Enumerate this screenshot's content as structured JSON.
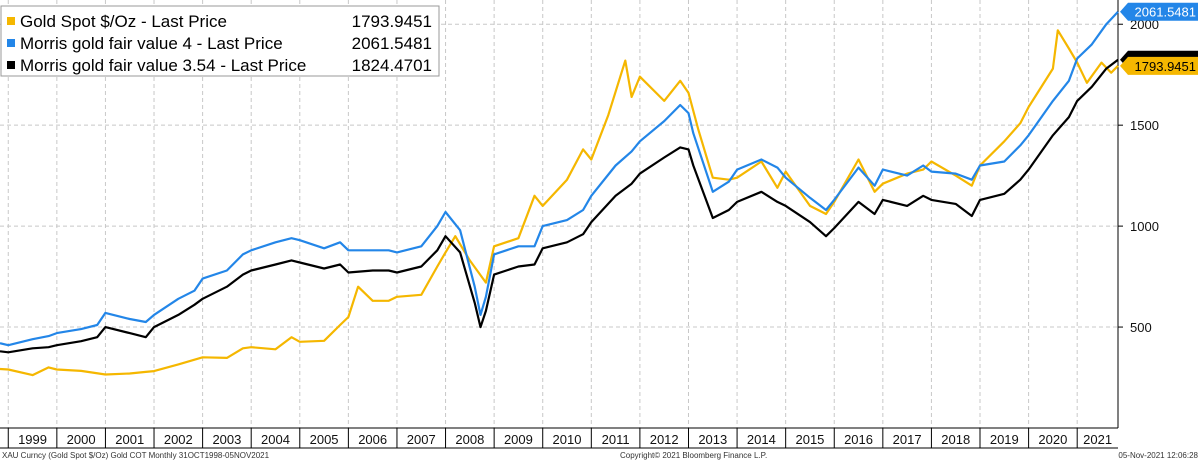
{
  "chart_data": {
    "type": "line",
    "ylim": [
      0,
      2120
    ],
    "xlim": [
      1998.83,
      2021.84
    ],
    "y_ticks": [
      500,
      1000,
      1500,
      2000
    ],
    "x_labels": [
      "1999",
      "2000",
      "2001",
      "2002",
      "2003",
      "2004",
      "2005",
      "2006",
      "2007",
      "2008",
      "2009",
      "2010",
      "2011",
      "2012",
      "2013",
      "2014",
      "2015",
      "2016",
      "2017",
      "2018",
      "2019",
      "2020",
      "2021"
    ],
    "grid": true,
    "legend": "top-left",
    "series": [
      {
        "name": "Gold Spot   $/Oz - Last Price",
        "last_value": "1793.9451",
        "color": "#f5b700",
        "tag_text_color": "#000000",
        "points": [
          [
            1998.83,
            292
          ],
          [
            1999.0,
            290
          ],
          [
            1999.5,
            262
          ],
          [
            1999.83,
            300
          ],
          [
            2000.0,
            290
          ],
          [
            2000.5,
            283
          ],
          [
            2001.0,
            265
          ],
          [
            2001.5,
            270
          ],
          [
            2001.83,
            278
          ],
          [
            2002.0,
            282
          ],
          [
            2002.5,
            315
          ],
          [
            2003.0,
            350
          ],
          [
            2003.5,
            347
          ],
          [
            2003.83,
            395
          ],
          [
            2004.0,
            400
          ],
          [
            2004.5,
            390
          ],
          [
            2004.83,
            450
          ],
          [
            2005.0,
            427
          ],
          [
            2005.5,
            432
          ],
          [
            2005.83,
            510
          ],
          [
            2006.0,
            550
          ],
          [
            2006.2,
            700
          ],
          [
            2006.5,
            630
          ],
          [
            2006.83,
            630
          ],
          [
            2007.0,
            650
          ],
          [
            2007.5,
            660
          ],
          [
            2007.83,
            800
          ],
          [
            2008.0,
            870
          ],
          [
            2008.2,
            950
          ],
          [
            2008.5,
            830
          ],
          [
            2008.83,
            720
          ],
          [
            2009.0,
            900
          ],
          [
            2009.5,
            940
          ],
          [
            2009.83,
            1150
          ],
          [
            2010.0,
            1100
          ],
          [
            2010.5,
            1230
          ],
          [
            2010.83,
            1380
          ],
          [
            2011.0,
            1330
          ],
          [
            2011.35,
            1550
          ],
          [
            2011.7,
            1820
          ],
          [
            2011.83,
            1640
          ],
          [
            2012.0,
            1740
          ],
          [
            2012.5,
            1620
          ],
          [
            2012.83,
            1720
          ],
          [
            2013.0,
            1660
          ],
          [
            2013.2,
            1480
          ],
          [
            2013.5,
            1240
          ],
          [
            2013.83,
            1230
          ],
          [
            2014.0,
            1240
          ],
          [
            2014.5,
            1320
          ],
          [
            2014.83,
            1190
          ],
          [
            2015.0,
            1270
          ],
          [
            2015.5,
            1100
          ],
          [
            2015.83,
            1060
          ],
          [
            2016.0,
            1120
          ],
          [
            2016.5,
            1330
          ],
          [
            2016.83,
            1170
          ],
          [
            2017.0,
            1210
          ],
          [
            2017.5,
            1260
          ],
          [
            2017.83,
            1280
          ],
          [
            2018.0,
            1320
          ],
          [
            2018.5,
            1250
          ],
          [
            2018.83,
            1200
          ],
          [
            2019.0,
            1300
          ],
          [
            2019.5,
            1420
          ],
          [
            2019.83,
            1510
          ],
          [
            2020.0,
            1590
          ],
          [
            2020.5,
            1780
          ],
          [
            2020.6,
            1970
          ],
          [
            2020.83,
            1880
          ],
          [
            2021.0,
            1810
          ],
          [
            2021.2,
            1710
          ],
          [
            2021.5,
            1810
          ],
          [
            2021.7,
            1760
          ],
          [
            2021.84,
            1794
          ]
        ]
      },
      {
        "name": "Morris gold fair value 4 - Last Price",
        "last_value": "2061.5481",
        "color": "#2386e8",
        "tag_text_color": "#ffffff",
        "points": [
          [
            1998.83,
            420
          ],
          [
            1999.0,
            410
          ],
          [
            1999.5,
            440
          ],
          [
            1999.83,
            455
          ],
          [
            2000.0,
            470
          ],
          [
            2000.5,
            490
          ],
          [
            2000.83,
            510
          ],
          [
            2001.0,
            570
          ],
          [
            2001.5,
            540
          ],
          [
            2001.83,
            525
          ],
          [
            2002.0,
            560
          ],
          [
            2002.5,
            640
          ],
          [
            2002.83,
            680
          ],
          [
            2003.0,
            740
          ],
          [
            2003.5,
            780
          ],
          [
            2003.83,
            860
          ],
          [
            2004.0,
            880
          ],
          [
            2004.5,
            920
          ],
          [
            2004.83,
            940
          ],
          [
            2005.0,
            930
          ],
          [
            2005.5,
            890
          ],
          [
            2005.83,
            920
          ],
          [
            2006.0,
            880
          ],
          [
            2006.5,
            880
          ],
          [
            2006.83,
            880
          ],
          [
            2007.0,
            870
          ],
          [
            2007.5,
            900
          ],
          [
            2007.83,
            1000
          ],
          [
            2008.0,
            1070
          ],
          [
            2008.3,
            980
          ],
          [
            2008.6,
            700
          ],
          [
            2008.72,
            560
          ],
          [
            2008.83,
            650
          ],
          [
            2009.0,
            860
          ],
          [
            2009.5,
            900
          ],
          [
            2009.83,
            900
          ],
          [
            2010.0,
            1000
          ],
          [
            2010.5,
            1030
          ],
          [
            2010.83,
            1080
          ],
          [
            2011.0,
            1150
          ],
          [
            2011.5,
            1300
          ],
          [
            2011.83,
            1370
          ],
          [
            2012.0,
            1420
          ],
          [
            2012.5,
            1520
          ],
          [
            2012.83,
            1600
          ],
          [
            2013.0,
            1560
          ],
          [
            2013.1,
            1460
          ],
          [
            2013.5,
            1170
          ],
          [
            2013.83,
            1220
          ],
          [
            2014.0,
            1280
          ],
          [
            2014.5,
            1330
          ],
          [
            2014.83,
            1290
          ],
          [
            2015.0,
            1240
          ],
          [
            2015.5,
            1140
          ],
          [
            2015.83,
            1080
          ],
          [
            2016.0,
            1130
          ],
          [
            2016.5,
            1290
          ],
          [
            2016.83,
            1200
          ],
          [
            2017.0,
            1280
          ],
          [
            2017.5,
            1250
          ],
          [
            2017.83,
            1300
          ],
          [
            2018.0,
            1270
          ],
          [
            2018.5,
            1260
          ],
          [
            2018.83,
            1230
          ],
          [
            2019.0,
            1300
          ],
          [
            2019.5,
            1320
          ],
          [
            2019.83,
            1400
          ],
          [
            2020.0,
            1450
          ],
          [
            2020.5,
            1620
          ],
          [
            2020.83,
            1720
          ],
          [
            2021.0,
            1830
          ],
          [
            2021.3,
            1900
          ],
          [
            2021.6,
            2000
          ],
          [
            2021.84,
            2062
          ]
        ]
      },
      {
        "name": "Morris gold fair value 3.54 - Last Price",
        "last_value": "1824.4701",
        "color": "#000000",
        "tag_text_color": "#000000",
        "points": [
          [
            1998.83,
            380
          ],
          [
            1999.0,
            375
          ],
          [
            1999.5,
            395
          ],
          [
            1999.83,
            400
          ],
          [
            2000.0,
            410
          ],
          [
            2000.5,
            430
          ],
          [
            2000.83,
            450
          ],
          [
            2001.0,
            500
          ],
          [
            2001.5,
            470
          ],
          [
            2001.83,
            450
          ],
          [
            2002.0,
            500
          ],
          [
            2002.5,
            560
          ],
          [
            2002.83,
            610
          ],
          [
            2003.0,
            640
          ],
          [
            2003.5,
            700
          ],
          [
            2003.83,
            760
          ],
          [
            2004.0,
            780
          ],
          [
            2004.5,
            810
          ],
          [
            2004.83,
            830
          ],
          [
            2005.0,
            820
          ],
          [
            2005.5,
            790
          ],
          [
            2005.83,
            810
          ],
          [
            2006.0,
            770
          ],
          [
            2006.5,
            780
          ],
          [
            2006.83,
            780
          ],
          [
            2007.0,
            770
          ],
          [
            2007.5,
            800
          ],
          [
            2007.83,
            880
          ],
          [
            2008.0,
            950
          ],
          [
            2008.3,
            870
          ],
          [
            2008.6,
            620
          ],
          [
            2008.72,
            500
          ],
          [
            2008.83,
            580
          ],
          [
            2009.0,
            760
          ],
          [
            2009.5,
            800
          ],
          [
            2009.83,
            810
          ],
          [
            2010.0,
            890
          ],
          [
            2010.5,
            920
          ],
          [
            2010.83,
            960
          ],
          [
            2011.0,
            1020
          ],
          [
            2011.5,
            1150
          ],
          [
            2011.83,
            1210
          ],
          [
            2012.0,
            1260
          ],
          [
            2012.5,
            1340
          ],
          [
            2012.83,
            1390
          ],
          [
            2013.0,
            1380
          ],
          [
            2013.1,
            1300
          ],
          [
            2013.5,
            1040
          ],
          [
            2013.83,
            1080
          ],
          [
            2014.0,
            1120
          ],
          [
            2014.5,
            1170
          ],
          [
            2014.83,
            1120
          ],
          [
            2015.0,
            1100
          ],
          [
            2015.5,
            1020
          ],
          [
            2015.83,
            950
          ],
          [
            2016.0,
            990
          ],
          [
            2016.5,
            1120
          ],
          [
            2016.83,
            1060
          ],
          [
            2017.0,
            1130
          ],
          [
            2017.5,
            1100
          ],
          [
            2017.83,
            1150
          ],
          [
            2018.0,
            1130
          ],
          [
            2018.5,
            1110
          ],
          [
            2018.83,
            1050
          ],
          [
            2019.0,
            1130
          ],
          [
            2019.5,
            1160
          ],
          [
            2019.83,
            1230
          ],
          [
            2020.0,
            1280
          ],
          [
            2020.5,
            1450
          ],
          [
            2020.83,
            1540
          ],
          [
            2021.0,
            1620
          ],
          [
            2021.3,
            1690
          ],
          [
            2021.6,
            1780
          ],
          [
            2021.84,
            1824
          ]
        ]
      }
    ]
  },
  "footer": {
    "left": "XAU Curncy (Gold Spot  $/Oz) Gold COT  Monthly 31OCT1998-05NOV2021",
    "center": "Copyright© 2021 Bloomberg Finance L.P.",
    "right": "05-Nov-2021 12:06:28"
  }
}
